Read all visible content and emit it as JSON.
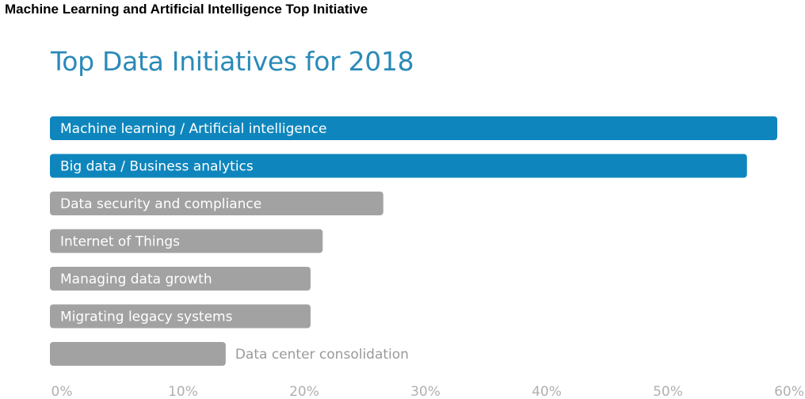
{
  "heading": "Machine Learning and Artificial Intelligence Top Initiative",
  "chart_data": {
    "type": "bar",
    "orientation": "horizontal",
    "title": "Top Data Initiatives for 2018",
    "categories": [
      "Machine learning / Artificial intelligence",
      "Big data / Business analytics",
      "Data security and compliance",
      "Internet of Things",
      "Managing data growth",
      "Migrating legacy systems",
      "Data center consolidation"
    ],
    "values": [
      60,
      57.5,
      27.5,
      22.5,
      21.5,
      21.5,
      14.5
    ],
    "highlight": [
      true,
      true,
      false,
      false,
      false,
      false,
      false
    ],
    "xlim": [
      0,
      60
    ],
    "ticks": [
      "0%",
      "10%",
      "20%",
      "30%",
      "40%",
      "50%",
      "60%"
    ],
    "tick_values": [
      0,
      10,
      20,
      30,
      40,
      50,
      60
    ],
    "grid": false,
    "colors": {
      "highlight": "#0e86bd",
      "default": "#a2a2a2",
      "title": "#2a8ab8",
      "tick": "#b0b0b0",
      "outside_label": "#9a9a9a"
    }
  }
}
